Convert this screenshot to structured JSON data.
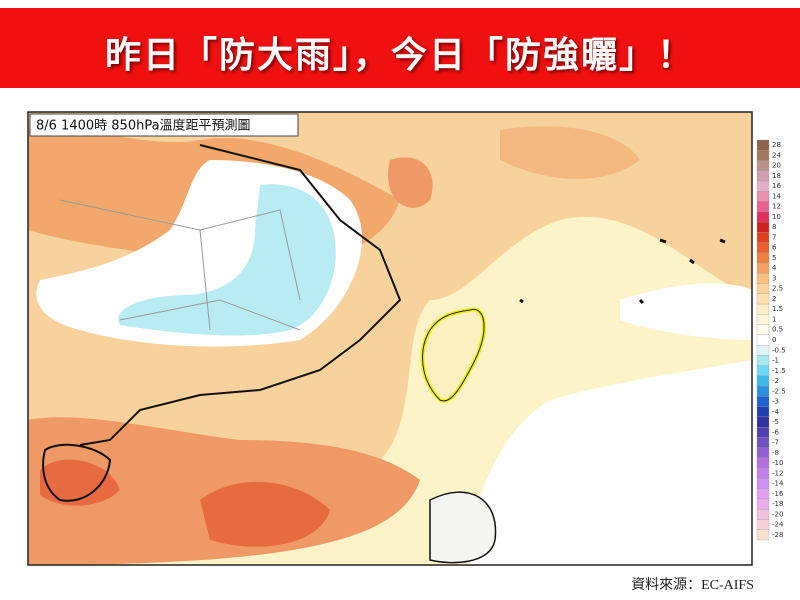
{
  "header": {
    "title": "昨日「防大雨」，今日「防強曬」！"
  },
  "map": {
    "label": "8/6 1400時  850hPa溫度距平預測圖",
    "legend": {
      "labels": [
        28,
        24,
        20,
        18,
        16,
        14,
        12,
        10,
        8,
        7,
        6,
        5,
        4,
        3,
        2.5,
        2,
        1.5,
        1,
        0.5,
        0,
        -0.5,
        -1,
        -1.5,
        -2,
        -2.5,
        -3,
        -4,
        -5,
        -6,
        -7,
        -8,
        -10,
        -12,
        -14,
        -16,
        -18,
        -20,
        -24,
        -28
      ]
    }
  },
  "source": "資料來源：EC-AIFS"
}
